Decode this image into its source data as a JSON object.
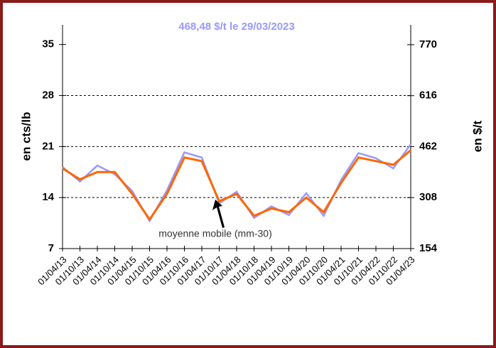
{
  "chart_data": {
    "type": "line",
    "title": "468,48 $/t le 29/03/2023",
    "ylabel": "en cts/lb",
    "y2label": "en $/t",
    "annotation": "moyenne mobile (mm-30)",
    "categories": [
      "01/04/13",
      "01/10/13",
      "01/04/14",
      "01/10/14",
      "01/04/15",
      "01/10/15",
      "01/04/16",
      "01/10/16",
      "01/04/17",
      "01/10/17",
      "01/04/18",
      "01/10/18",
      "01/04/19",
      "01/10/19",
      "01/04/20",
      "01/10/20",
      "01/04/21",
      "01/10/21",
      "01/04/22",
      "01/10/22",
      "01/04/23"
    ],
    "series": [
      {
        "color": "#9999ff",
        "values": [
          18.2,
          16.2,
          18.4,
          17.2,
          14.9,
          10.8,
          15.0,
          20.2,
          19.5,
          13.2,
          14.8,
          11.2,
          12.8,
          11.6,
          14.6,
          11.5,
          16.4,
          20.1,
          19.4,
          18.0,
          21.3
        ]
      },
      {
        "color": "#ff6600",
        "values": [
          18,
          16.5,
          17.5,
          17.5,
          14.5,
          11,
          14.5,
          19.5,
          19,
          13.5,
          14.5,
          11.5,
          12.5,
          12,
          14,
          12,
          16,
          19.5,
          19,
          18.5,
          20.5
        ]
      }
    ],
    "ylim": [
      7,
      37.7
    ],
    "yticks": [
      7,
      14,
      21,
      28,
      35
    ],
    "ygrid": [
      14,
      21,
      28
    ],
    "y2lim": [
      154,
      830
    ],
    "y2ticks": [
      154,
      308,
      462,
      616,
      770
    ]
  }
}
